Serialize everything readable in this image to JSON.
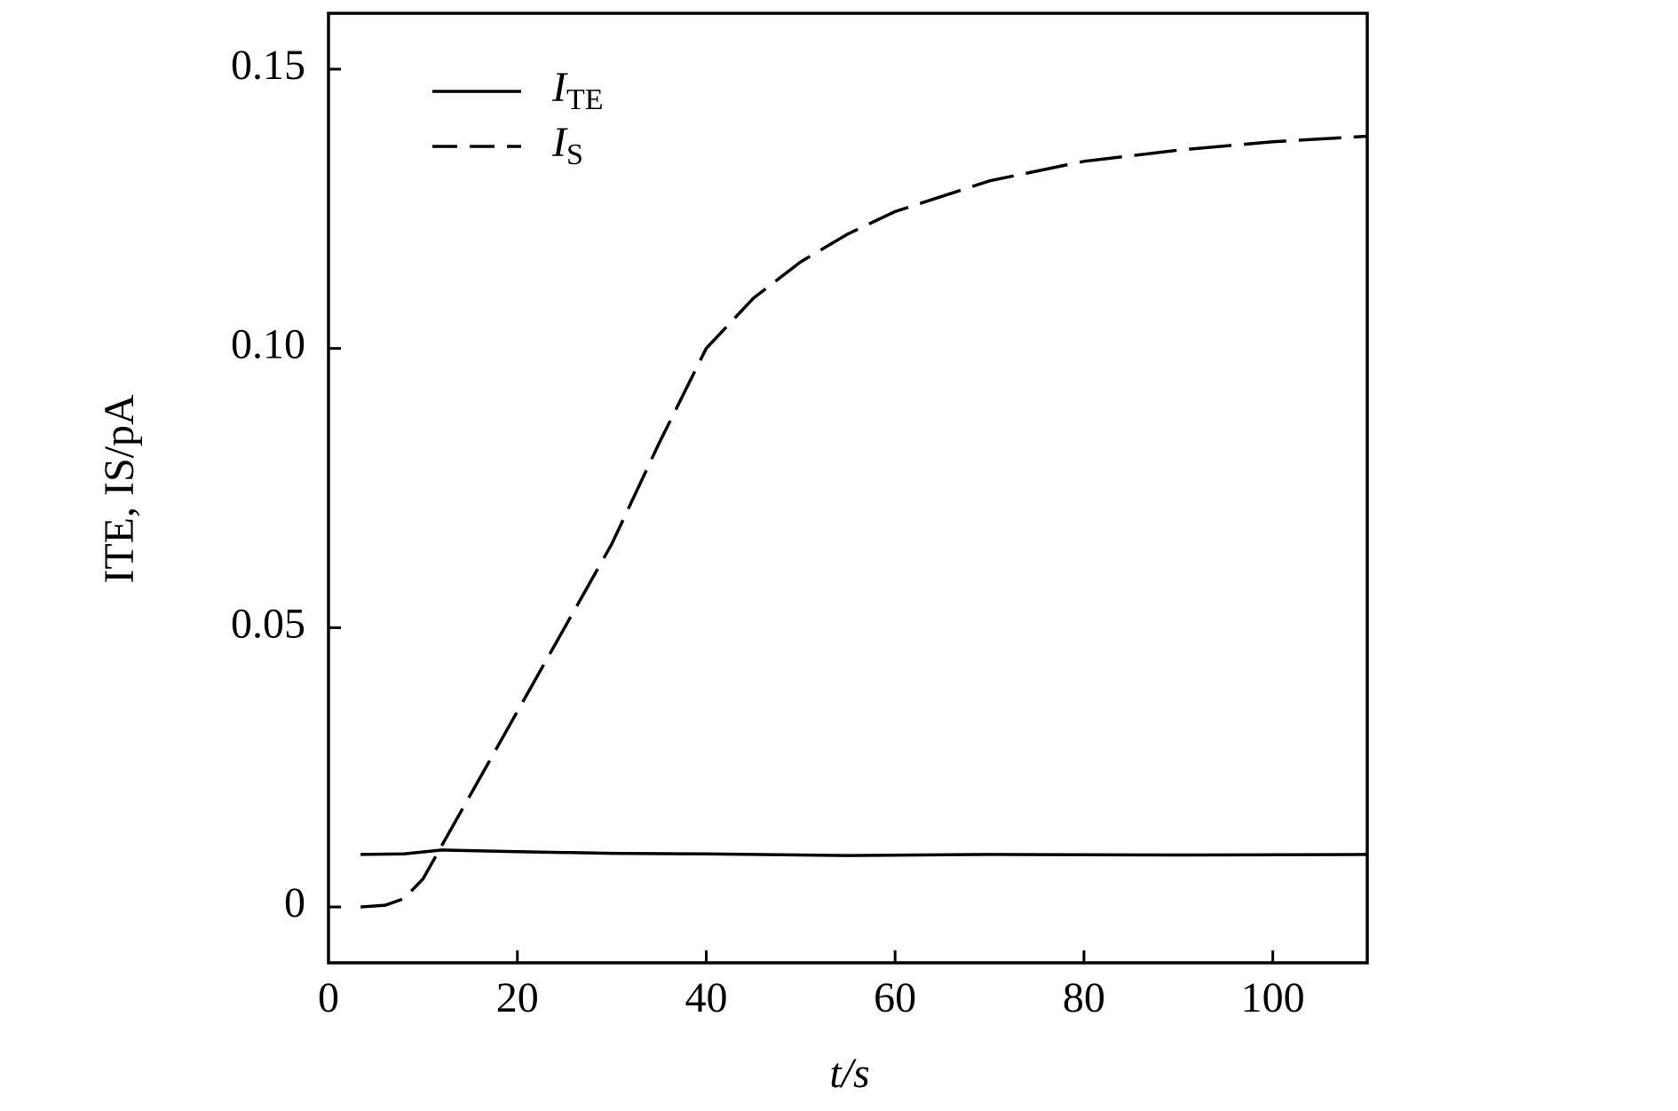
{
  "chart_data": {
    "type": "line",
    "xlabel": "t/s",
    "ylabel": "ITE, IS/pA",
    "xlim": [
      0,
      110
    ],
    "ylim": [
      -0.01,
      0.16
    ],
    "xticks": [
      0,
      20,
      40,
      60,
      80,
      100
    ],
    "yticks": [
      0,
      0.05,
      {
        "value": 0.1,
        "label": "0.10"
      },
      0.15
    ],
    "legend": "upper left",
    "series": [
      {
        "name": "ITE",
        "color": "#000000",
        "linestyle": "solid",
        "x": [
          3.4,
          8,
          12,
          20,
          30,
          40,
          50,
          55,
          70,
          90,
          110
        ],
        "values": [
          0.0094,
          0.0095,
          0.0102,
          0.0099,
          0.0096,
          0.0095,
          0.0093,
          0.0092,
          0.0094,
          0.0093,
          0.0094
        ]
      },
      {
        "name": "IS",
        "color": "#000000",
        "linestyle": "dashed",
        "x": [
          3.4,
          6,
          8,
          10,
          12,
          15,
          20,
          25,
          30,
          35,
          40,
          45,
          50,
          55,
          60,
          70,
          80,
          90,
          100,
          110
        ],
        "values": [
          0,
          0.0003,
          0.0015,
          0.005,
          0.011,
          0.02,
          0.035,
          0.05,
          0.065,
          0.083,
          0.1,
          0.109,
          0.1155,
          0.1205,
          0.1245,
          0.13,
          0.1335,
          0.1355,
          0.137,
          0.138
        ]
      }
    ]
  }
}
